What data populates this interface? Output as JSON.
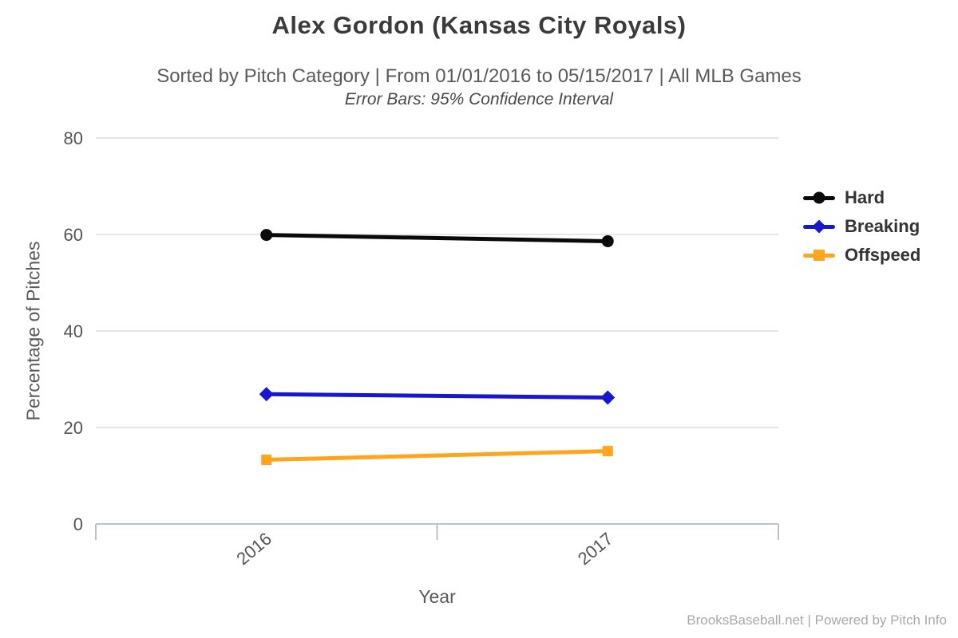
{
  "header": {
    "title": "Alex Gordon (Kansas City Royals)",
    "subtitle": "Sorted by Pitch Category | From 01/01/2016 to 05/15/2017 | All MLB Games",
    "error_note": "Error Bars: 95% Confidence Interval"
  },
  "chart_data": {
    "type": "line",
    "title": "Alex Gordon (Kansas City Royals)",
    "xlabel": "Year",
    "ylabel": "Percentage of Pitches",
    "categories": [
      "2016",
      "2017"
    ],
    "series": [
      {
        "name": "Hard",
        "color": "#0a0a0a",
        "marker": "circle",
        "values": [
          59.9,
          58.6
        ]
      },
      {
        "name": "Breaking",
        "color": "#1717d1",
        "marker": "diamond",
        "values": [
          26.9,
          26.2
        ]
      },
      {
        "name": "Offspeed",
        "color": "#ffa41c",
        "marker": "square",
        "values": [
          13.3,
          15.1
        ]
      }
    ],
    "yticks": [
      0,
      20,
      40,
      60,
      80
    ],
    "ylim": [
      0,
      80
    ],
    "grid": true,
    "legend_position": "right"
  },
  "palette": {
    "grid": "#e6e6e6",
    "axis": "#b9c3cd"
  },
  "footer": {
    "credit": "BrooksBaseball.net | Powered by Pitch Info"
  }
}
